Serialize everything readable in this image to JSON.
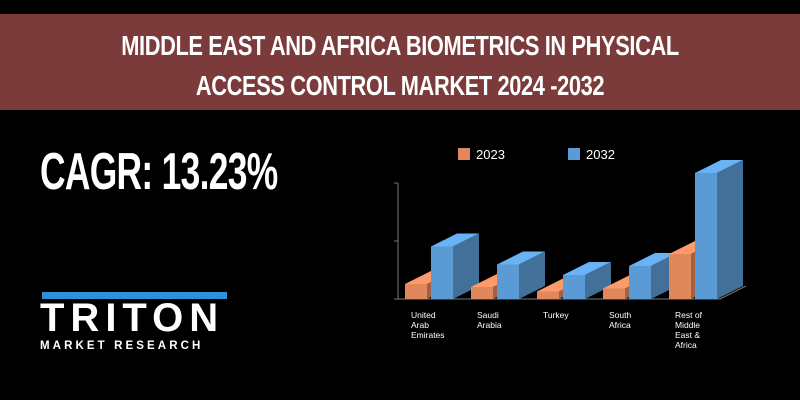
{
  "banner": {
    "line1": "MIDDLE EAST AND AFRICA BIOMETRICS IN PHYSICAL",
    "line2": "ACCESS CONTROL MARKET 2024 -2032"
  },
  "cagr": "CAGR: 13.23%",
  "logo": {
    "name": "TRITON",
    "tagline": "MARKET RESEARCH"
  },
  "colors": {
    "banner": "#7a3b3a",
    "series_2023": "#e0875c",
    "series_2032": "#5b9bd5",
    "logo_accent": "#2f8fd8"
  },
  "chart_data": {
    "type": "bar",
    "title": "",
    "categories": [
      [
        "United",
        "Arab",
        "Emirates"
      ],
      [
        "Saudi",
        "Arabia"
      ],
      [
        "Turkey"
      ],
      [
        "South",
        "Africa"
      ],
      [
        "Rest of",
        "Middle",
        "East &",
        "Africa"
      ]
    ],
    "series": [
      {
        "name": "2023",
        "values": [
          1.0,
          0.8,
          0.5,
          0.7,
          3.0
        ]
      },
      {
        "name": "2032",
        "values": [
          3.5,
          2.3,
          1.6,
          2.2,
          8.4
        ]
      }
    ],
    "ylim": [
      0,
      10
    ],
    "legend": "top",
    "grid": false,
    "xlabel": "",
    "ylabel": ""
  }
}
